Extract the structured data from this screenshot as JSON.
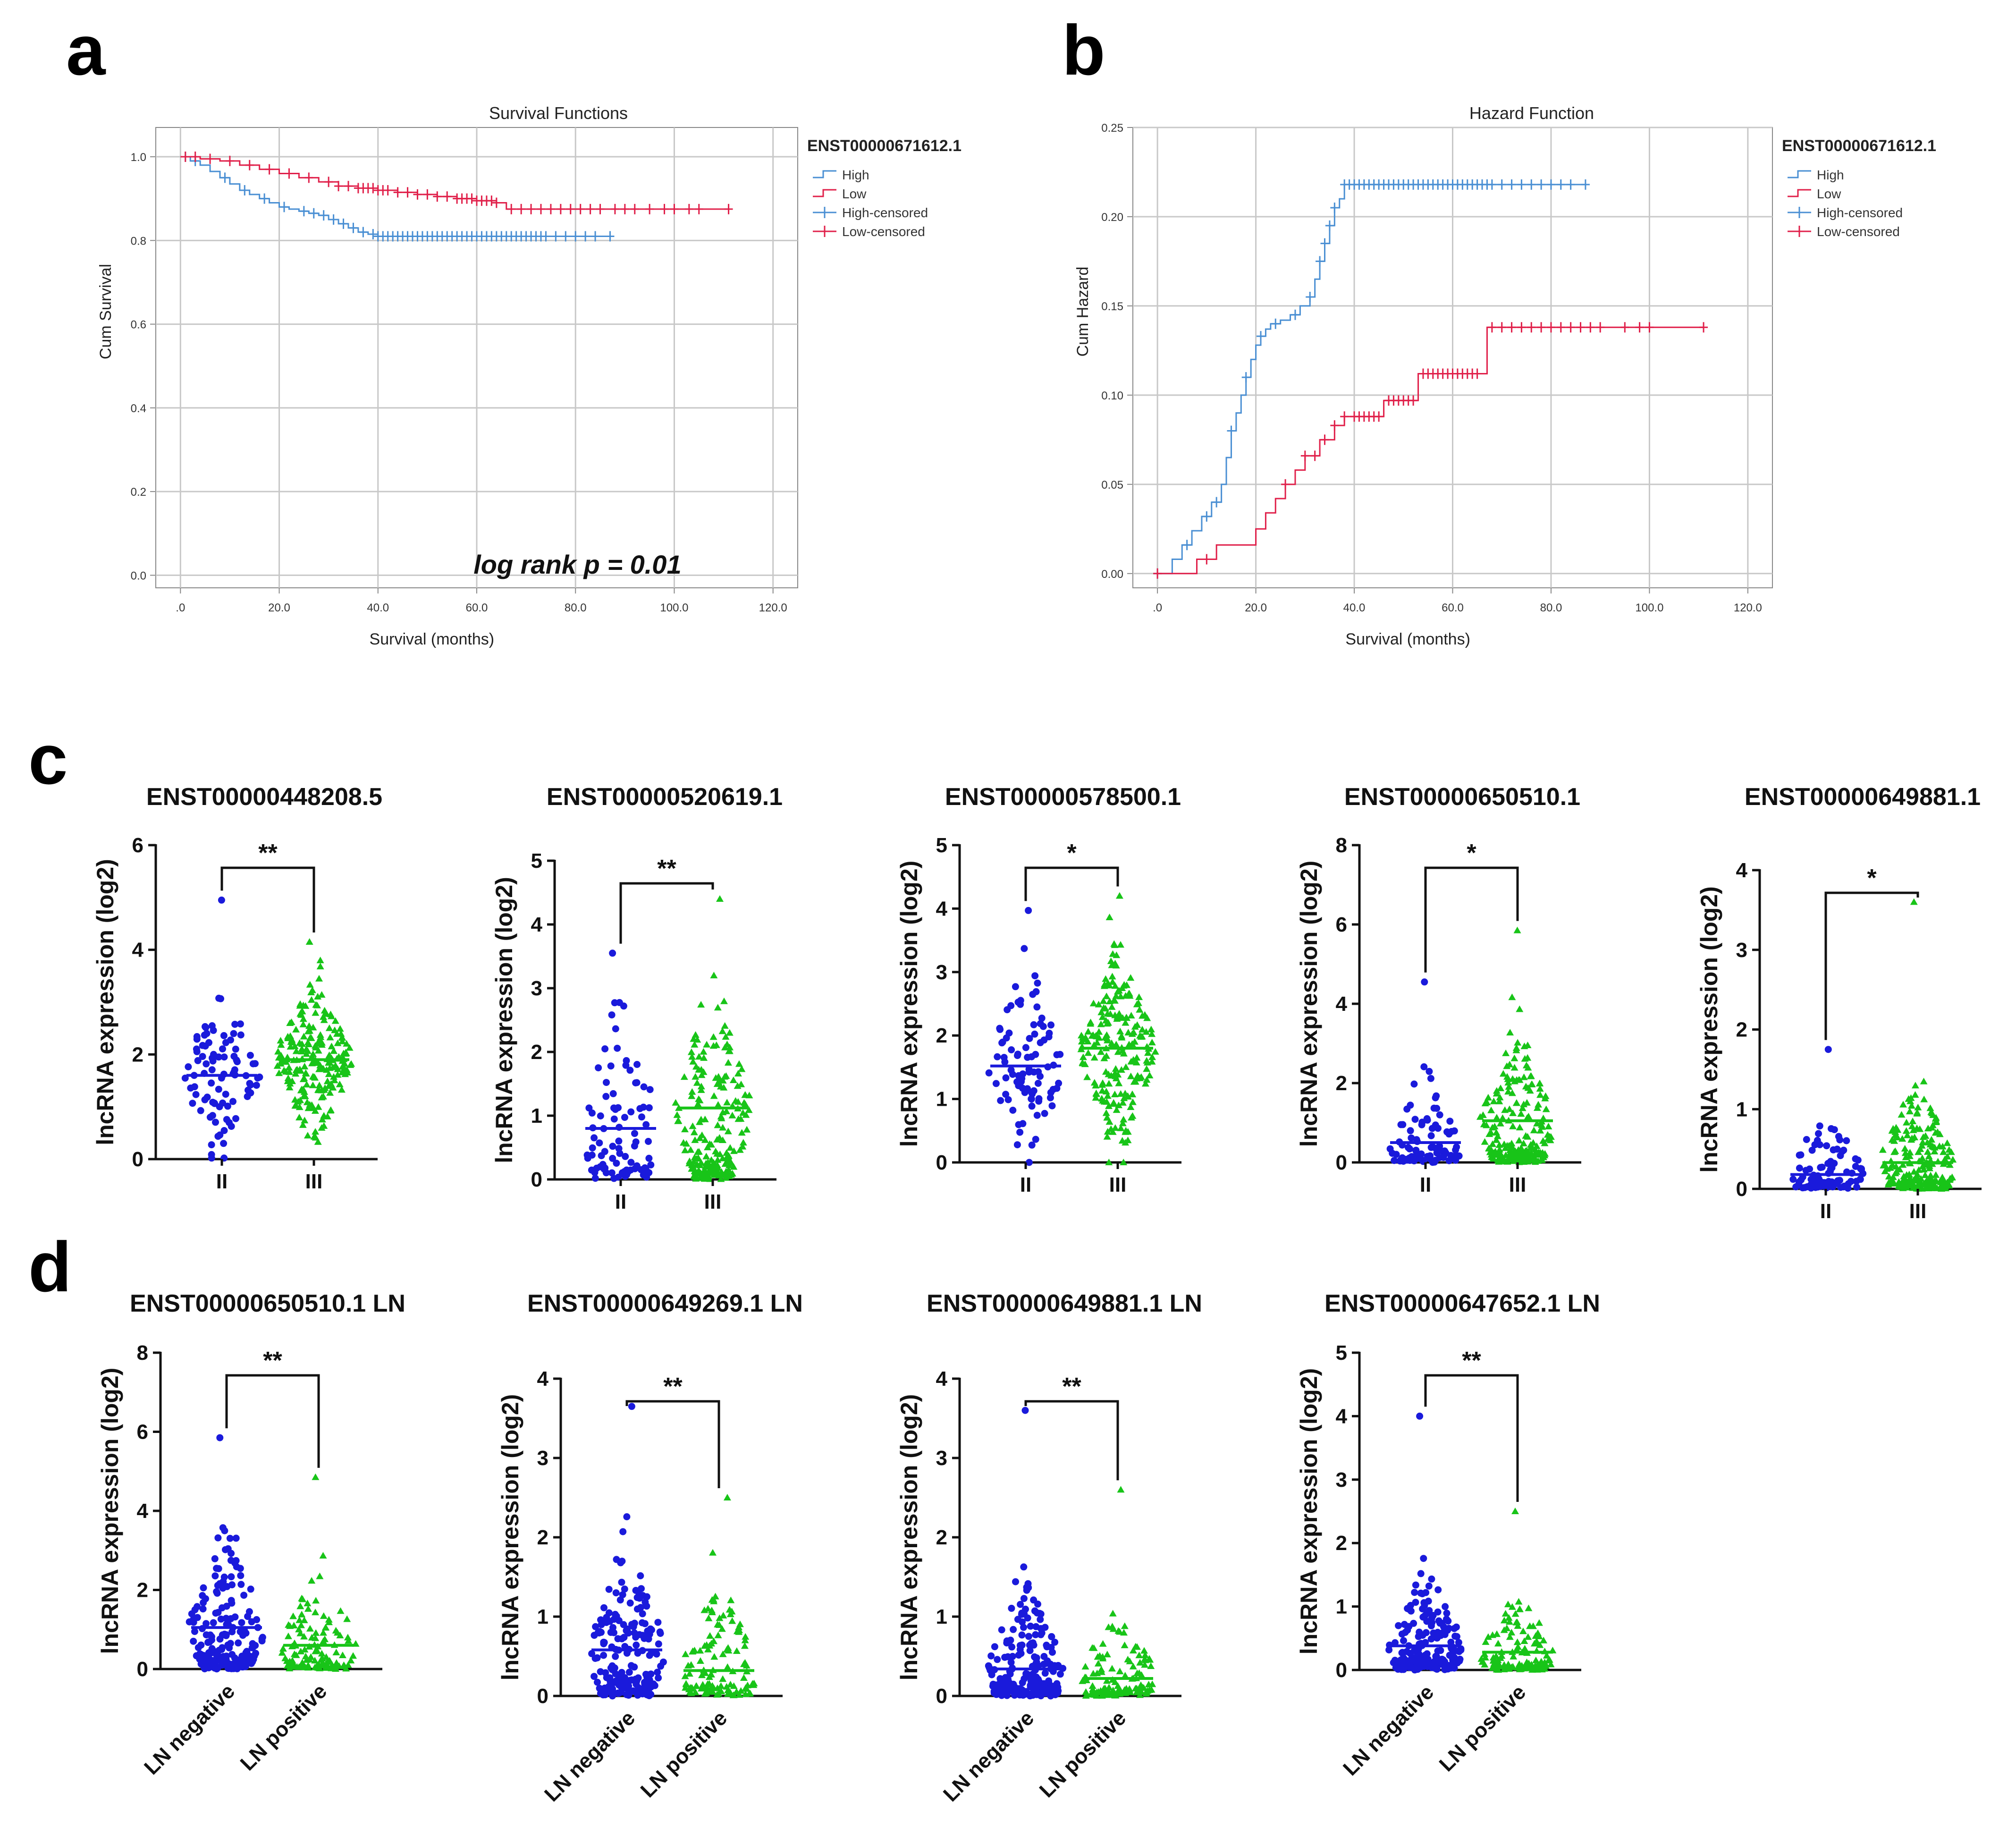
{
  "panels": {
    "a": "a",
    "b": "b",
    "c": "c",
    "d": "d"
  },
  "colors": {
    "high": "#4a8fd3",
    "low": "#e0204a",
    "blue": "#1a1adb",
    "green": "#18c418",
    "grid": "#c8c8c8"
  },
  "chart_data": [
    {
      "id": "a",
      "type": "line",
      "step": true,
      "title": "Survival Functions",
      "xlabel": "Survival (months)",
      "ylabel": "Cum Survival",
      "xlim": [
        -5,
        125
      ],
      "ylim": [
        -0.03,
        1.07
      ],
      "xticks": [
        0,
        20,
        40,
        60,
        80,
        100,
        120
      ],
      "xtick_labels": [
        ".0",
        "20.0",
        "40.0",
        "60.0",
        "80.0",
        "100.0",
        "120.0"
      ],
      "yticks": [
        0,
        0.2,
        0.4,
        0.6,
        0.8,
        1.0
      ],
      "ytick_labels": [
        "0.0",
        "0.2",
        "0.4",
        "0.6",
        "0.8",
        "1.0"
      ],
      "legend_title": "ENST00000671612.1",
      "legend": [
        "High",
        "Low",
        "High-censored",
        "Low-censored"
      ],
      "annotation": "log rank p = 0.01",
      "series": [
        {
          "name": "High",
          "color_key": "high",
          "x": [
            0,
            2,
            4,
            6,
            8,
            10,
            12,
            14,
            16,
            18,
            20,
            22,
            24,
            26,
            28,
            30,
            32,
            34,
            36,
            38,
            40
          ],
          "y": [
            1.0,
            0.99,
            0.98,
            0.965,
            0.95,
            0.935,
            0.92,
            0.91,
            0.9,
            0.89,
            0.88,
            0.875,
            0.87,
            0.865,
            0.86,
            0.85,
            0.84,
            0.83,
            0.82,
            0.815,
            0.81
          ],
          "end": 87,
          "censored_x": [
            1,
            3,
            9,
            13,
            17,
            21,
            25,
            27,
            29,
            31,
            33,
            35,
            37,
            39,
            40,
            41,
            42,
            43,
            44,
            45,
            46,
            47,
            48,
            49,
            50,
            51,
            52,
            53,
            54,
            55,
            56,
            57,
            58,
            59,
            60,
            61,
            62,
            63,
            64,
            65,
            66,
            67,
            68,
            69,
            70,
            71,
            72,
            73,
            74,
            76,
            78,
            80,
            82,
            84,
            87
          ]
        },
        {
          "name": "Low",
          "color_key": "low",
          "x": [
            0,
            4,
            8,
            12,
            16,
            20,
            24,
            28,
            32,
            36,
            40,
            44,
            48,
            52,
            56,
            60,
            64,
            66
          ],
          "y": [
            1.0,
            0.995,
            0.99,
            0.98,
            0.97,
            0.96,
            0.95,
            0.94,
            0.93,
            0.925,
            0.92,
            0.915,
            0.91,
            0.905,
            0.9,
            0.895,
            0.89,
            0.875
          ],
          "end": 111,
          "censored_x": [
            1,
            3,
            6,
            10,
            14,
            18,
            22,
            26,
            30,
            32,
            34,
            36,
            37,
            38,
            39,
            40,
            41,
            42,
            44,
            46,
            48,
            50,
            52,
            54,
            56,
            57,
            58,
            59,
            60,
            61,
            62,
            63,
            64,
            67,
            69,
            71,
            73,
            75,
            77,
            79,
            81,
            83,
            85,
            88,
            90,
            92,
            95,
            98,
            100,
            103,
            105,
            111
          ]
        }
      ]
    },
    {
      "id": "b",
      "type": "line",
      "step": true,
      "title": "Hazard Function",
      "xlabel": "Survival (months)",
      "ylabel": "Cum Hazard",
      "xlim": [
        -5,
        125
      ],
      "ylim": [
        -0.008,
        0.25
      ],
      "xticks": [
        0,
        20,
        40,
        60,
        80,
        100,
        120
      ],
      "xtick_labels": [
        ".0",
        "20.0",
        "40.0",
        "60.0",
        "80.0",
        "100.0",
        "120.0"
      ],
      "yticks": [
        0,
        0.05,
        0.1,
        0.15,
        0.2,
        0.25
      ],
      "ytick_labels": [
        "0.00",
        "0.05",
        "0.10",
        "0.15",
        "0.20",
        "0.25"
      ],
      "legend_title": "ENST00000671612.1",
      "legend": [
        "High",
        "Low",
        "High-censored",
        "Low-censored"
      ],
      "series": [
        {
          "name": "High",
          "color_key": "high",
          "x": [
            0,
            3,
            5,
            7,
            9,
            11,
            13,
            14,
            15,
            16,
            17,
            18,
            19,
            20,
            21,
            22,
            23,
            25,
            27,
            29,
            31,
            32,
            33,
            34,
            35,
            36,
            37,
            38
          ],
          "y": [
            0.0,
            0.008,
            0.016,
            0.024,
            0.032,
            0.04,
            0.05,
            0.065,
            0.08,
            0.09,
            0.1,
            0.11,
            0.12,
            0.128,
            0.133,
            0.137,
            0.14,
            0.142,
            0.145,
            0.15,
            0.155,
            0.165,
            0.175,
            0.185,
            0.195,
            0.205,
            0.21,
            0.218
          ],
          "end": 87,
          "censored_x": [
            0,
            6,
            10,
            12,
            15,
            18,
            21,
            24,
            28,
            31,
            33,
            34,
            35,
            36,
            38,
            39,
            40,
            41,
            42,
            43,
            44,
            45,
            46,
            47,
            48,
            49,
            50,
            51,
            52,
            53,
            54,
            55,
            56,
            57,
            58,
            59,
            60,
            61,
            62,
            63,
            64,
            65,
            66,
            67,
            68,
            70,
            72,
            74,
            76,
            78,
            80,
            82,
            84,
            87
          ]
        },
        {
          "name": "Low",
          "color_key": "low",
          "x": [
            0,
            8,
            12,
            20,
            22,
            24,
            26,
            28,
            30,
            33,
            36,
            38,
            46,
            53,
            67
          ],
          "y": [
            0.0,
            0.008,
            0.016,
            0.025,
            0.034,
            0.042,
            0.05,
            0.058,
            0.066,
            0.075,
            0.083,
            0.088,
            0.097,
            0.112,
            0.138
          ],
          "end": 111,
          "censored_x": [
            0,
            10,
            26,
            30,
            32,
            34,
            36,
            38,
            40,
            41,
            42,
            43,
            44,
            45,
            47,
            48,
            49,
            50,
            51,
            52,
            54,
            55,
            56,
            57,
            58,
            59,
            60,
            61,
            62,
            63,
            64,
            65,
            68,
            70,
            72,
            74,
            76,
            78,
            80,
            82,
            84,
            86,
            88,
            90,
            95,
            98,
            100,
            111
          ]
        }
      ]
    },
    {
      "id": "c1",
      "type": "scatter",
      "title": "ENST00000448208.5",
      "ylabel": "lncRNA expression (log2)",
      "ylim": [
        0,
        6
      ],
      "yticks": [
        0,
        2,
        4,
        6
      ],
      "categories": [
        "II",
        "III"
      ],
      "significance": "**",
      "groups": [
        {
          "n": 90,
          "mean": 1.6,
          "sd": 0.75,
          "max": 4.95,
          "min": 0.02
        },
        {
          "n": 220,
          "mean": 1.9,
          "sd": 0.7,
          "max": 4.15,
          "min": 0.05
        }
      ]
    },
    {
      "id": "c2",
      "type": "scatter",
      "title": "ENST00000520619.1",
      "ylabel": "lncRNA expression (log2)",
      "ylim": [
        0,
        5
      ],
      "yticks": [
        0,
        1,
        2,
        3,
        4,
        5
      ],
      "categories": [
        "II",
        "III"
      ],
      "significance": "**",
      "groups": [
        {
          "n": 90,
          "mean": 0.8,
          "sd": 0.85,
          "max": 3.55,
          "min": 0
        },
        {
          "n": 220,
          "mean": 1.12,
          "sd": 0.85,
          "max": 4.4,
          "min": 0
        }
      ]
    },
    {
      "id": "c3",
      "type": "scatter",
      "title": "ENST00000578500.1",
      "ylabel": "lncRNA expression (log2)",
      "ylim": [
        0,
        5
      ],
      "yticks": [
        0,
        1,
        2,
        3,
        4,
        5
      ],
      "categories": [
        "II",
        "III"
      ],
      "significance": "*",
      "groups": [
        {
          "n": 90,
          "mean": 1.52,
          "sd": 0.7,
          "max": 3.97,
          "min": 0.0
        },
        {
          "n": 220,
          "mean": 1.8,
          "sd": 0.7,
          "max": 4.2,
          "min": 0.0
        }
      ]
    },
    {
      "id": "c4",
      "type": "scatter",
      "title": "ENST00000650510.1",
      "ylabel": "lncRNA expression (log2)",
      "ylim": [
        0,
        8
      ],
      "yticks": [
        0,
        2,
        4,
        6,
        8
      ],
      "categories": [
        "II",
        "III"
      ],
      "significance": "*",
      "groups": [
        {
          "n": 90,
          "mean": 0.5,
          "sd": 0.8,
          "max": 4.55,
          "min": 0
        },
        {
          "n": 220,
          "mean": 1.05,
          "sd": 1.0,
          "max": 5.85,
          "min": 0
        }
      ]
    },
    {
      "id": "c5",
      "type": "scatter",
      "title": "ENST00000649881.1",
      "ylabel": "lncRNA expression (log2)",
      "ylim": [
        0,
        4
      ],
      "yticks": [
        0,
        1,
        2,
        3,
        4
      ],
      "categories": [
        "II",
        "III"
      ],
      "significance": "*",
      "groups": [
        {
          "n": 90,
          "mean": 0.18,
          "sd": 0.35,
          "max": 1.75,
          "min": 0
        },
        {
          "n": 220,
          "mean": 0.33,
          "sd": 0.45,
          "max": 3.6,
          "min": 0
        }
      ]
    },
    {
      "id": "d1",
      "type": "scatter",
      "title": "ENST00000650510.1 LN",
      "ylabel": "lncRNA expression (log2)",
      "ylim": [
        0,
        8
      ],
      "yticks": [
        0,
        2,
        4,
        6,
        8
      ],
      "categories": [
        "LN negative",
        "LN positive"
      ],
      "significance": "**",
      "groups": [
        {
          "n": 200,
          "mean": 1.05,
          "sd": 1.0,
          "max": 5.85,
          "min": 0
        },
        {
          "n": 120,
          "mean": 0.6,
          "sd": 0.85,
          "max": 4.85,
          "min": 0
        }
      ]
    },
    {
      "id": "d2",
      "type": "scatter",
      "title": "ENST00000649269.1 LN",
      "ylabel": "lncRNA expression (log2)",
      "ylim": [
        0,
        4
      ],
      "yticks": [
        0,
        1,
        2,
        3,
        4
      ],
      "categories": [
        "LN negative",
        "LN positive"
      ],
      "significance": "**",
      "groups": [
        {
          "n": 200,
          "mean": 0.58,
          "sd": 0.6,
          "max": 3.65,
          "min": 0
        },
        {
          "n": 120,
          "mean": 0.32,
          "sd": 0.5,
          "max": 2.5,
          "min": 0
        }
      ]
    },
    {
      "id": "d3",
      "type": "scatter",
      "title": "ENST00000649881.1 LN",
      "ylabel": "lncRNA expression (log2)",
      "ylim": [
        0,
        4
      ],
      "yticks": [
        0,
        1,
        2,
        3,
        4
      ],
      "categories": [
        "LN negative",
        "LN positive"
      ],
      "significance": "**",
      "groups": [
        {
          "n": 200,
          "mean": 0.34,
          "sd": 0.5,
          "max": 3.6,
          "min": 0
        },
        {
          "n": 120,
          "mean": 0.22,
          "sd": 0.4,
          "max": 2.6,
          "min": 0
        }
      ]
    },
    {
      "id": "d4",
      "type": "scatter",
      "title": "ENST00000647652.1 LN",
      "ylabel": "lncRNA expression (log2)",
      "ylim": [
        0,
        5
      ],
      "yticks": [
        0,
        1,
        2,
        3,
        4,
        5
      ],
      "categories": [
        "LN negative",
        "LN positive"
      ],
      "significance": "**",
      "groups": [
        {
          "n": 200,
          "mean": 0.38,
          "sd": 0.5,
          "max": 4.0,
          "min": 0
        },
        {
          "n": 120,
          "mean": 0.28,
          "sd": 0.4,
          "max": 2.5,
          "min": 0
        }
      ]
    }
  ]
}
